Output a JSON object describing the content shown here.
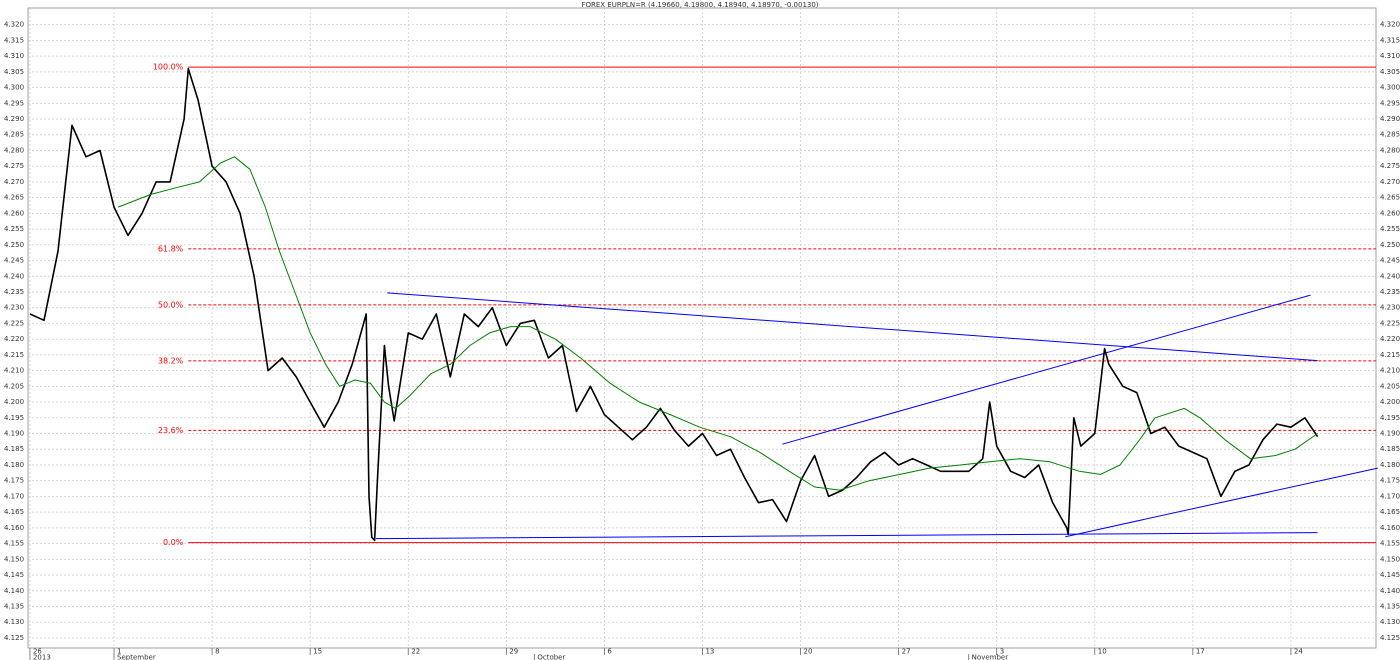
{
  "chart_data": {
    "type": "line",
    "title": "FOREX EURPLN=R (4.19660, 4.19800, 4.18940, 4.18970, -0.00130)",
    "xlim": [
      237.86,
      334.5
    ],
    "ylim": [
      4.1218,
      4.3253
    ],
    "grid": true,
    "xticks": [
      {
        "value": 238,
        "label": "26"
      },
      {
        "value": 244,
        "label": "1"
      },
      {
        "value": 251,
        "label": "8"
      },
      {
        "value": 258,
        "label": "15"
      },
      {
        "value": 265,
        "label": "22"
      },
      {
        "value": 272,
        "label": "29"
      },
      {
        "value": 279,
        "label": "6"
      },
      {
        "value": 286,
        "label": "13"
      },
      {
        "value": 293,
        "label": "20"
      },
      {
        "value": 300,
        "label": "27"
      },
      {
        "value": 307,
        "label": "3"
      },
      {
        "value": 314,
        "label": "10"
      },
      {
        "value": 321,
        "label": "17"
      },
      {
        "value": 328,
        "label": "24"
      }
    ],
    "period_labels": [
      {
        "value": 238,
        "label": "2013"
      },
      {
        "value": 244,
        "label": "September"
      },
      {
        "value": 274,
        "label": "October"
      },
      {
        "value": 305,
        "label": "November"
      }
    ],
    "yticks": [
      4.125,
      {
        "value": 4.13,
        "label": "4.130"
      },
      4.135,
      {
        "value": 4.14,
        "label": "4.140"
      },
      4.145,
      {
        "value": 4.15,
        "label": "4.150"
      },
      4.155,
      {
        "value": 4.16,
        "label": "4.160"
      },
      4.165,
      {
        "value": 4.17,
        "label": "4.170"
      },
      4.175,
      {
        "value": 4.18,
        "label": "4.180"
      },
      4.185,
      {
        "value": 4.19,
        "label": "4.190"
      },
      4.195,
      {
        "value": 4.2,
        "label": "4.200"
      },
      4.205,
      {
        "value": 4.21,
        "label": "4.210"
      },
      4.215,
      {
        "value": 4.22,
        "label": "4.220"
      },
      4.225,
      {
        "value": 4.23,
        "label": "4.230"
      },
      4.235,
      {
        "value": 4.24,
        "label": "4.240"
      },
      4.245,
      {
        "value": 4.25,
        "label": "4.250"
      },
      4.255,
      {
        "value": 4.26,
        "label": "4.260"
      },
      4.265,
      {
        "value": 4.27,
        "label": "4.270"
      },
      4.275,
      {
        "value": 4.28,
        "label": "4.280"
      },
      4.285,
      {
        "value": 4.29,
        "label": "4.290"
      },
      4.295,
      {
        "value": 4.3,
        "label": "4.300"
      },
      4.305,
      {
        "value": 4.31,
        "label": "4.310"
      },
      4.315,
      {
        "value": 4.32,
        "label": "4.320"
      }
    ],
    "series": [
      {
        "color": "#000000",
        "x": [
          238,
          239,
          240,
          241,
          242,
          243,
          244,
          245,
          246,
          247,
          248,
          249,
          249.3,
          250,
          251,
          252,
          253,
          254,
          255,
          256,
          257,
          258,
          259,
          260,
          261,
          262,
          262.2,
          262.4,
          262.6,
          262.8,
          263.3,
          263.6,
          264,
          265,
          266,
          267,
          268,
          269,
          270,
          271,
          272,
          273,
          274,
          275,
          276,
          277,
          278,
          279,
          280,
          281,
          282,
          283,
          284,
          285,
          286,
          287,
          288,
          289,
          290,
          291,
          292,
          293,
          294,
          295,
          296,
          297,
          298,
          299,
          300,
          301,
          302,
          303,
          304,
          305,
          306,
          306.5,
          307,
          308,
          309,
          310,
          311,
          312,
          312.1,
          312.5,
          313,
          314,
          314.7,
          315,
          316,
          317,
          318,
          319,
          320,
          321,
          322,
          323,
          324,
          325,
          326,
          327,
          328,
          329,
          329.9
        ],
        "values": [
          4.228,
          4.226,
          4.248,
          4.288,
          4.278,
          4.28,
          4.262,
          4.253,
          4.26,
          4.27,
          4.27,
          4.29,
          4.306,
          4.296,
          4.275,
          4.27,
          4.26,
          4.24,
          4.21,
          4.214,
          4.208,
          4.2,
          4.192,
          4.2,
          4.212,
          4.228,
          4.17,
          4.157,
          4.156,
          4.175,
          4.218,
          4.205,
          4.194,
          4.222,
          4.22,
          4.228,
          4.208,
          4.228,
          4.224,
          4.23,
          4.218,
          4.225,
          4.226,
          4.214,
          4.218,
          4.197,
          4.205,
          4.196,
          4.192,
          4.188,
          4.192,
          4.198,
          4.191,
          4.186,
          4.19,
          4.183,
          4.185,
          4.176,
          4.168,
          4.169,
          4.162,
          4.175,
          4.183,
          4.17,
          4.172,
          4.176,
          4.181,
          4.184,
          4.18,
          4.182,
          4.18,
          4.178,
          4.178,
          4.178,
          4.182,
          4.2,
          4.186,
          4.178,
          4.176,
          4.18,
          4.168,
          4.16,
          4.158,
          4.195,
          4.186,
          4.19,
          4.217,
          4.212,
          4.205,
          4.203,
          4.19,
          4.192,
          4.186,
          4.184,
          4.182,
          4.17,
          4.178,
          4.18,
          4.188,
          4.193,
          4.192,
          4.195,
          4.189
        ]
      },
      {
        "color": "#008000",
        "x": [
          244.3,
          246.6,
          248.3,
          250.1,
          251.6,
          252.6,
          253.7,
          254.8,
          255.8,
          256.9,
          258,
          259.1,
          260.1,
          261.2,
          262.3,
          263.3,
          264.1,
          265.1,
          266.6,
          268,
          269.4,
          270.8,
          272.3,
          273.7,
          275.5,
          277.3,
          279.4,
          281.5,
          283.7,
          285.8,
          288,
          290.1,
          292.2,
          294,
          295.8,
          297.9,
          300.1,
          302.2,
          304.4,
          306.5,
          308.7,
          310.8,
          312.9,
          314.4,
          315.8,
          317.2,
          318.3,
          320.4,
          321.5,
          323.3,
          325.1,
          326.9,
          328.3,
          329.9
        ],
        "values": [
          4.262,
          4.266,
          4.268,
          4.27,
          4.276,
          4.278,
          4.274,
          4.262,
          4.248,
          4.235,
          4.222,
          4.212,
          4.205,
          4.207,
          4.206,
          4.2,
          4.198,
          4.202,
          4.209,
          4.212,
          4.218,
          4.222,
          4.224,
          4.224,
          4.22,
          4.214,
          4.206,
          4.2,
          4.196,
          4.192,
          4.189,
          4.184,
          4.178,
          4.173,
          4.172,
          4.175,
          4.177,
          4.179,
          4.18,
          4.181,
          4.182,
          4.181,
          4.178,
          4.177,
          4.18,
          4.188,
          4.195,
          4.198,
          4.195,
          4.188,
          4.182,
          4.183,
          4.185,
          4.19
        ]
      }
    ],
    "fib_start": 249.3,
    "levels": [
      {
        "label": "100.0%",
        "value": 4.3065,
        "color": "#ff0000",
        "dashed": false
      },
      {
        "label": "61.8%",
        "value": 4.2487,
        "color": "#ff0000",
        "dashed": true
      },
      {
        "label": "50.0%",
        "value": 4.2309,
        "color": "#ff0000",
        "dashed": true
      },
      {
        "label": "38.2%",
        "value": 4.2131,
        "color": "#ff0000",
        "dashed": true
      },
      {
        "label": "23.6%",
        "value": 4.191,
        "color": "#ff0000",
        "dashed": true
      },
      {
        "label": "0.0%",
        "value": 4.1553,
        "color": "#ff0000",
        "dashed": false
      }
    ],
    "trendlines": [
      {
        "color": "#0000ff",
        "x": [
          263.5,
          329.9
        ],
        "values": [
          4.2347,
          4.2132
        ]
      },
      {
        "color": "#0000ff",
        "x": [
          262.7,
          329.9
        ],
        "values": [
          4.1566,
          4.1585
        ]
      },
      {
        "color": "#0000ff",
        "x": [
          291.7,
          329.4
        ],
        "values": [
          4.1866,
          4.234
        ]
      },
      {
        "color": "#0000ff",
        "x": [
          311.9,
          334.2
        ],
        "values": [
          4.1572,
          4.179
        ]
      }
    ]
  }
}
